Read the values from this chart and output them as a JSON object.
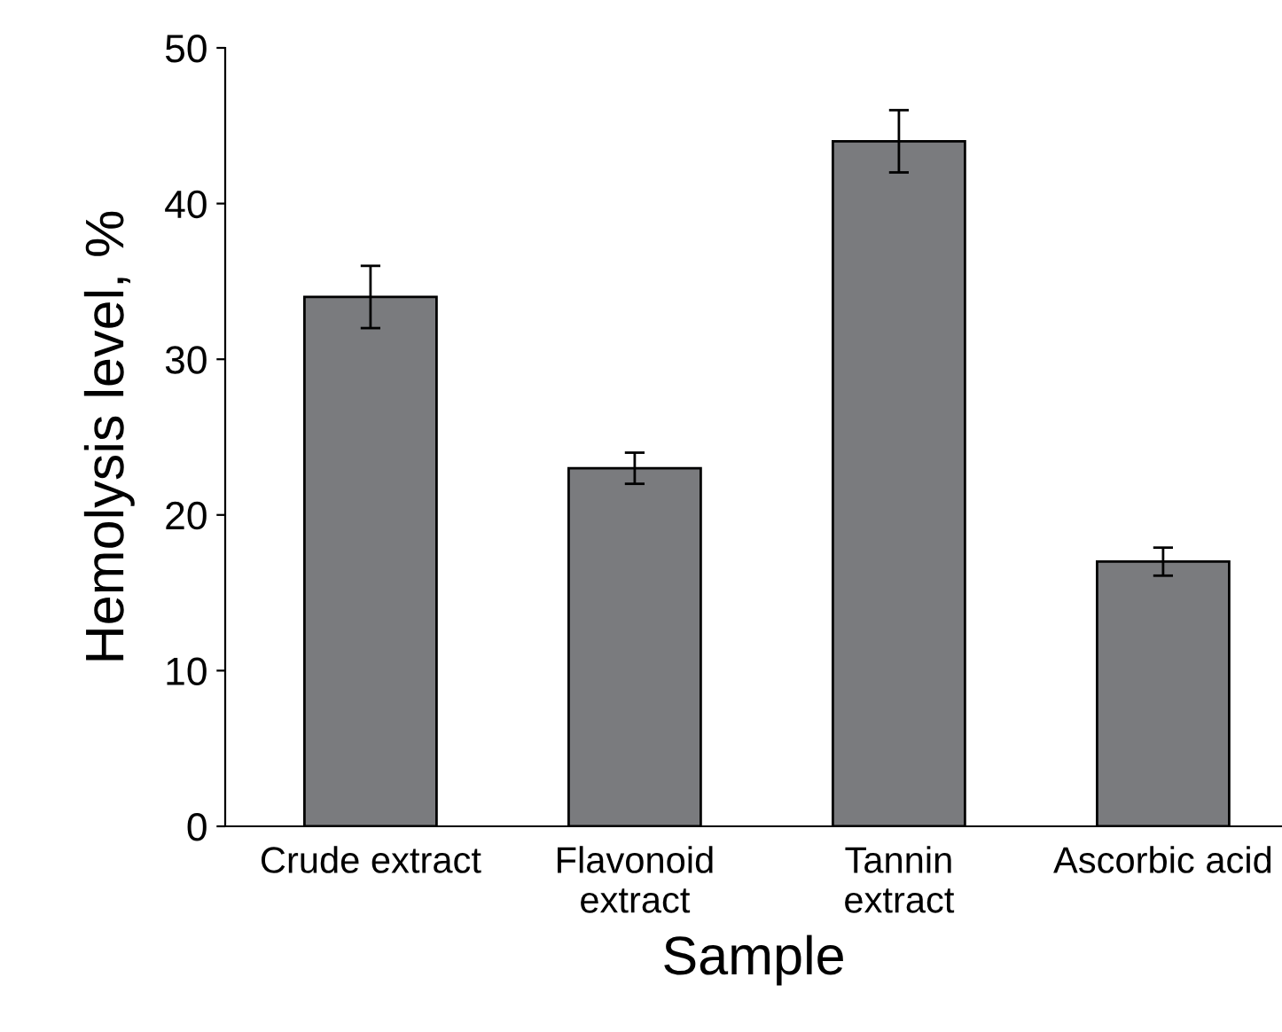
{
  "chart_data": {
    "type": "bar",
    "xlabel": "Sample",
    "ylabel": "Hemolysis level, %",
    "categories": [
      "Crude extract",
      "Flavonoid\nextract",
      "Tannin\nextract",
      "Ascorbic acid"
    ],
    "values": [
      34,
      23,
      44,
      17
    ],
    "errors": [
      2,
      1,
      2,
      0.9
    ],
    "color": "#7a7b7e",
    "ylim": [
      0,
      50
    ],
    "yticks": [
      0,
      10,
      20,
      30,
      40,
      50
    ],
    "grid": false
  }
}
